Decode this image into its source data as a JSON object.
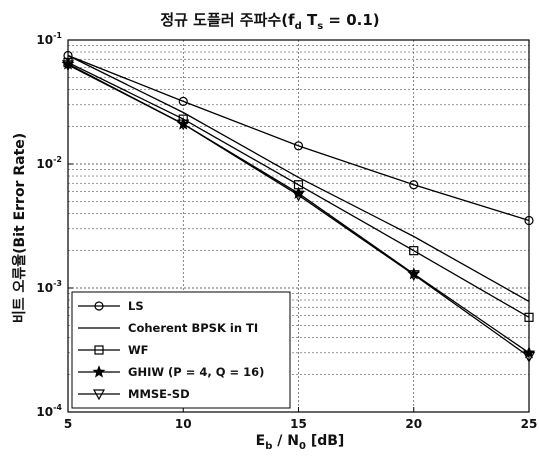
{
  "chart_data": {
    "type": "line",
    "title": "정규 도플러 주파수(f",
    "title_sub_d": "d",
    "title_mid": " T",
    "title_sub_s": "s",
    "title_end": " = 0.1)",
    "xlabel_main": "E",
    "xlabel_sub_b": "b",
    "xlabel_mid": " / N",
    "xlabel_sub_0": "0",
    "xlabel_end": " [dB]",
    "ylabel": "비트 오류율(Bit Error Rate)",
    "xlim": [
      5,
      25
    ],
    "ylim": [
      0.0001,
      0.1
    ],
    "yscale": "log",
    "grid": true,
    "legend_position": "bottom-left",
    "x_ticks": [
      "5",
      "10",
      "15",
      "20",
      "25"
    ],
    "y_ticks": [
      {
        "base": "10",
        "exp": "-1",
        "value": 0.1
      },
      {
        "base": "10",
        "exp": "-2",
        "value": 0.01
      },
      {
        "base": "10",
        "exp": "-3",
        "value": 0.001
      },
      {
        "base": "10",
        "exp": "-4",
        "value": 0.0001
      }
    ],
    "series": [
      {
        "name": "LS",
        "marker": "circle",
        "x": [
          5,
          10,
          15,
          20,
          25
        ],
        "values": [
          0.075,
          0.032,
          0.014,
          0.0068,
          0.0035
        ]
      },
      {
        "name": "Coherent BPSK in TI",
        "marker": "none",
        "x": [
          5,
          10,
          15,
          20,
          25
        ],
        "values": [
          0.075,
          0.026,
          0.0078,
          0.0026,
          0.00078
        ]
      },
      {
        "name": "WF",
        "marker": "square",
        "x": [
          5,
          10,
          15,
          20,
          25
        ],
        "values": [
          0.066,
          0.023,
          0.0068,
          0.002,
          0.00058
        ]
      },
      {
        "name": "GHIW (P = 4, Q = 16)",
        "marker": "star",
        "x": [
          5,
          10,
          15,
          20,
          25
        ],
        "values": [
          0.064,
          0.021,
          0.0058,
          0.0013,
          0.0003
        ]
      },
      {
        "name": "MMSE-SD",
        "marker": "triangle-down",
        "x": [
          5,
          10,
          15,
          20,
          25
        ],
        "values": [
          0.063,
          0.021,
          0.0056,
          0.00128,
          0.00028
        ]
      }
    ]
  }
}
